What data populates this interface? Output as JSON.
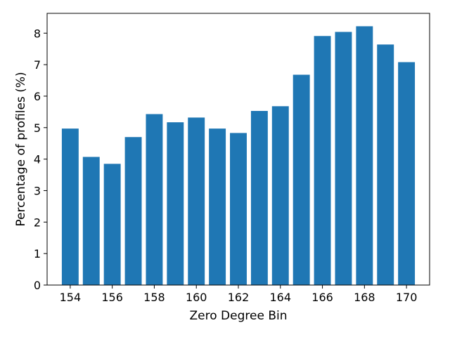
{
  "chart_data": {
    "type": "bar",
    "x": [
      154,
      155,
      156,
      157,
      158,
      159,
      160,
      161,
      162,
      163,
      164,
      165,
      166,
      167,
      168,
      169,
      170
    ],
    "values": [
      4.97,
      4.07,
      3.85,
      4.7,
      5.43,
      5.17,
      5.32,
      4.97,
      4.83,
      5.53,
      5.68,
      6.68,
      7.91,
      8.04,
      8.22,
      7.64,
      7.08
    ],
    "xticks": [
      154,
      156,
      158,
      160,
      162,
      164,
      166,
      168,
      170
    ],
    "yticks": [
      0,
      1,
      2,
      3,
      4,
      5,
      6,
      7,
      8
    ],
    "xlabel": "Zero Degree Bin",
    "ylabel": "Percentage of profiles (%)",
    "xlim": [
      152.9,
      171.1
    ],
    "ylim": [
      0,
      8.63
    ],
    "bar_color": "#1f77b4",
    "grid": false
  }
}
